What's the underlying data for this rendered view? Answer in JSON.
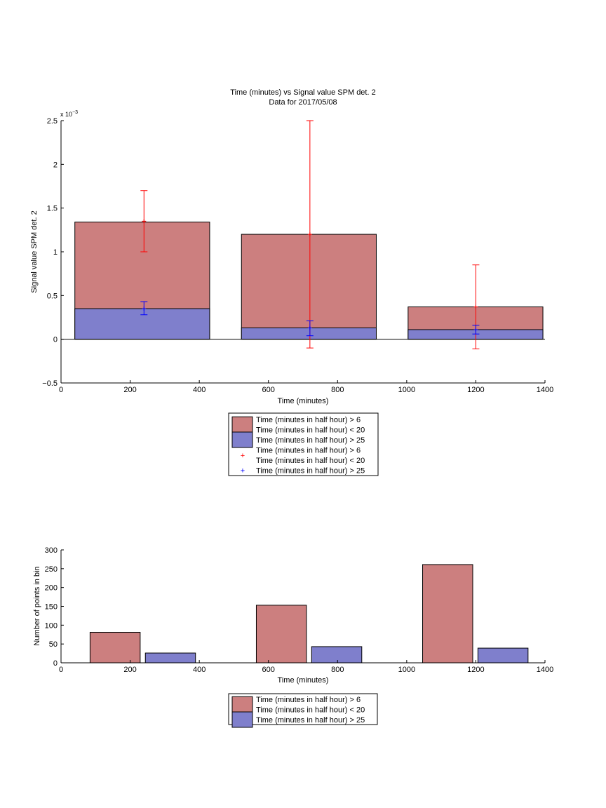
{
  "chart_data": [
    {
      "type": "bar",
      "title": "Time (minutes) vs Signal value SPM det. 2",
      "subtitle": "Data for 2017/05/08",
      "xlabel": "Time (minutes)",
      "ylabel": "Signal value SPM det. 2",
      "exponent_label": "x 10",
      "exponent_power": "−3",
      "xlim": [
        0,
        1400
      ],
      "ylim": [
        -0.5,
        2.5
      ],
      "x_ticks": [
        "0",
        "200",
        "400",
        "600",
        "800",
        "1000",
        "1200",
        "1400"
      ],
      "y_ticks": [
        "−0.5",
        "0",
        "0.5",
        "1",
        "1.5",
        "2",
        "2.5"
      ],
      "bar_edges": [
        [
          40,
          430
        ],
        [
          522,
          912
        ],
        [
          1004,
          1394
        ]
      ],
      "series": [
        {
          "name": "Time (minutes in half hour) > 6\nTime (minutes in half hour) < 20",
          "color": "#cc7f7f",
          "values": [
            1.34,
            1.2,
            0.37
          ],
          "err_x": [
            240,
            720,
            1200
          ],
          "err_mean": [
            1.35,
            1.2,
            0.37
          ],
          "err_low": [
            1.0,
            -0.1,
            -0.11
          ],
          "err_high": [
            1.7,
            2.5,
            0.85
          ],
          "err_color": "#ff0000"
        },
        {
          "name": "Time (minutes in half hour) > 25",
          "color": "#7f7fcc",
          "values": [
            0.35,
            0.13,
            0.11
          ],
          "err_x": [
            240,
            720,
            1200
          ],
          "err_mean": [
            0.35,
            0.13,
            0.11
          ],
          "err_low": [
            0.28,
            0.04,
            0.06
          ],
          "err_high": [
            0.43,
            0.21,
            0.16
          ],
          "err_color": "#0000ff"
        }
      ],
      "legend": {
        "placement": "below",
        "entries": [
          {
            "kind": "patch",
            "color": "#cc7f7f",
            "lines": [
              "Time (minutes in half hour) > 6",
              "Time (minutes in half hour) < 20"
            ]
          },
          {
            "kind": "patch",
            "color": "#7f7fcc",
            "lines": [
              "Time (minutes in half hour) > 25"
            ]
          },
          {
            "kind": "marker",
            "color": "#ff0000",
            "lines": [
              "Time (minutes in half hour) > 6",
              "Time (minutes in half hour) < 20"
            ]
          },
          {
            "kind": "marker",
            "color": "#0000ff",
            "lines": [
              "Time (minutes in half hour) > 25"
            ]
          }
        ]
      }
    },
    {
      "type": "bar",
      "xlabel": "Time (minutes)",
      "ylabel": "Number of points in bin",
      "xlim": [
        0,
        1400
      ],
      "ylim": [
        0,
        300
      ],
      "x_ticks": [
        "0",
        "200",
        "400",
        "600",
        "800",
        "1000",
        "1200",
        "1400"
      ],
      "y_ticks": [
        "0",
        "50",
        "100",
        "150",
        "200",
        "250",
        "300"
      ],
      "series": [
        {
          "name": "Time (minutes in half hour) > 6\nTime (minutes in half hour) < 20",
          "color": "#cc7f7f",
          "x_edges": [
            [
              84,
              229
            ],
            [
              565,
              710
            ],
            [
              1046,
              1191
            ]
          ],
          "values": [
            81,
            153,
            261
          ]
        },
        {
          "name": "Time (minutes in half hour) > 25",
          "color": "#7f7fcc",
          "x_edges": [
            [
              244,
              389
            ],
            [
              725,
              870
            ],
            [
              1206,
              1351
            ]
          ],
          "values": [
            26,
            43,
            39
          ]
        }
      ],
      "legend": {
        "placement": "below",
        "entries": [
          {
            "kind": "patch",
            "color": "#cc7f7f",
            "lines": [
              "Time (minutes in half hour) > 6",
              "Time (minutes in half hour) < 20"
            ]
          },
          {
            "kind": "patch",
            "color": "#7f7fcc",
            "lines": [
              "Time (minutes in half hour) > 25"
            ]
          }
        ]
      }
    }
  ]
}
